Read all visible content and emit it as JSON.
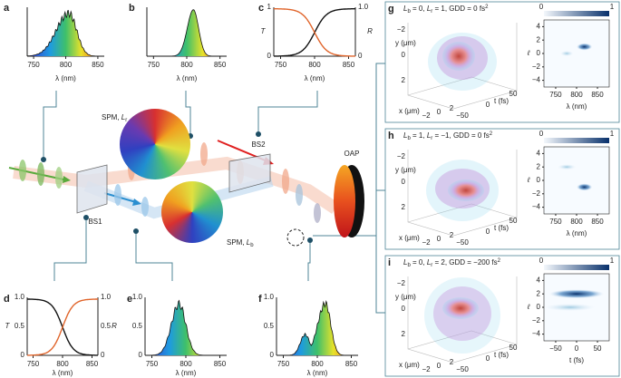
{
  "spectra": [
    {
      "label": "a",
      "xticks": [
        "750",
        "800",
        "850"
      ],
      "xlabel": "λ (nm)"
    },
    {
      "label": "b",
      "xticks": [
        "750",
        "800",
        "850"
      ],
      "xlabel": "λ (nm)"
    },
    {
      "label": "c",
      "left_title": "T",
      "right_title": "R",
      "yticks": [
        "1",
        "0"
      ],
      "yticks_right": [
        "1.0",
        "0"
      ],
      "xticks": [
        "750",
        "800",
        "850"
      ],
      "xlabel": "λ (nm)"
    },
    {
      "label": "d",
      "left_title": "T",
      "right_title": "R",
      "yticks": [
        "1.0",
        "0.5",
        "0"
      ],
      "yticks_right": [
        "1.0",
        "0.5",
        "0"
      ],
      "xticks": [
        "750",
        "800",
        "850"
      ],
      "xlabel": "λ (nm)"
    },
    {
      "label": "e",
      "yticks": [
        "1.0",
        "0.5",
        "0"
      ],
      "xticks": [
        "750",
        "800",
        "850"
      ],
      "xlabel": "λ (nm)"
    },
    {
      "label": "f",
      "yticks": [
        "1.0",
        "0.5",
        "0"
      ],
      "xticks": [
        "750",
        "800",
        "850"
      ],
      "xlabel": "λ (nm)"
    }
  ],
  "pulses": [
    {
      "label": "g",
      "title": [
        {
          "t": "L"
        },
        {
          "sub": "b"
        },
        {
          "t": " = 0, "
        },
        {
          "t": "L"
        },
        {
          "sub": "r"
        },
        {
          "t": " = 1, GDD = 0 fs"
        },
        {
          "sup": "2"
        }
      ],
      "y_label": "y (μm)",
      "y_ticks": [
        "−2",
        "0",
        "2"
      ],
      "x_label": "x (μm)",
      "x_ticks": [
        "−2",
        "0",
        "2"
      ],
      "t_label": "t (fs)",
      "t_ticks": [
        "−50",
        "0",
        "50"
      ],
      "map": {
        "cbar": [
          "0",
          "1"
        ],
        "ylabel": "ℓ",
        "yticks": [
          "4",
          "2",
          "0",
          "−2",
          "−4"
        ],
        "xticks": [
          "750",
          "800",
          "850"
        ],
        "xlabel": "λ (nm)"
      }
    },
    {
      "label": "h",
      "title": [
        {
          "t": "L"
        },
        {
          "sub": "b"
        },
        {
          "t": " = 1, "
        },
        {
          "t": "L"
        },
        {
          "sub": "r"
        },
        {
          "t": " = −1, GDD = 0 fs"
        },
        {
          "sup": "2"
        }
      ],
      "y_label": "y (μm)",
      "y_ticks": [
        "−2",
        "0",
        "2"
      ],
      "x_label": "x (μm)",
      "x_ticks": [
        "−2",
        "0",
        "2"
      ],
      "t_label": "t (fs)",
      "t_ticks": [
        "−50",
        "0",
        "50"
      ],
      "map": {
        "cbar": [
          "0",
          "1"
        ],
        "ylabel": "ℓ",
        "yticks": [
          "4",
          "2",
          "0",
          "−2",
          "−4"
        ],
        "xticks": [
          "750",
          "800",
          "850"
        ],
        "xlabel": "λ (nm)"
      }
    },
    {
      "label": "i",
      "title": [
        {
          "t": "L"
        },
        {
          "sub": "b"
        },
        {
          "t": " = 0, "
        },
        {
          "t": "L"
        },
        {
          "sub": "r"
        },
        {
          "t": " = 2, GDD = −200 fs"
        },
        {
          "sup": "2"
        }
      ],
      "y_label": "y (μm)",
      "y_ticks": [
        "−2",
        "0",
        "2"
      ],
      "x_label": "x (μm)",
      "x_ticks": [
        "−2",
        "0",
        "2"
      ],
      "t_label": "t (fs)",
      "t_ticks": [
        "−50",
        "0",
        "50"
      ],
      "map": {
        "cbar": [
          "0",
          "1"
        ],
        "ylabel": "ℓ",
        "yticks": [
          "4",
          "2",
          "0",
          "−2",
          "−4"
        ],
        "xticks": [
          "−50",
          "0",
          "50"
        ],
        "xlabel": "t (fs)"
      }
    }
  ],
  "diagram": {
    "spm_r": [
      {
        "t": "SPM, "
      },
      {
        "t": "L"
      },
      {
        "sub": "r"
      }
    ],
    "spm_b": [
      {
        "t": "SPM, "
      },
      {
        "t": "L"
      },
      {
        "sub": "b"
      }
    ],
    "bs1": "BS1",
    "bs2": "BS2",
    "oap": "OAP"
  }
}
